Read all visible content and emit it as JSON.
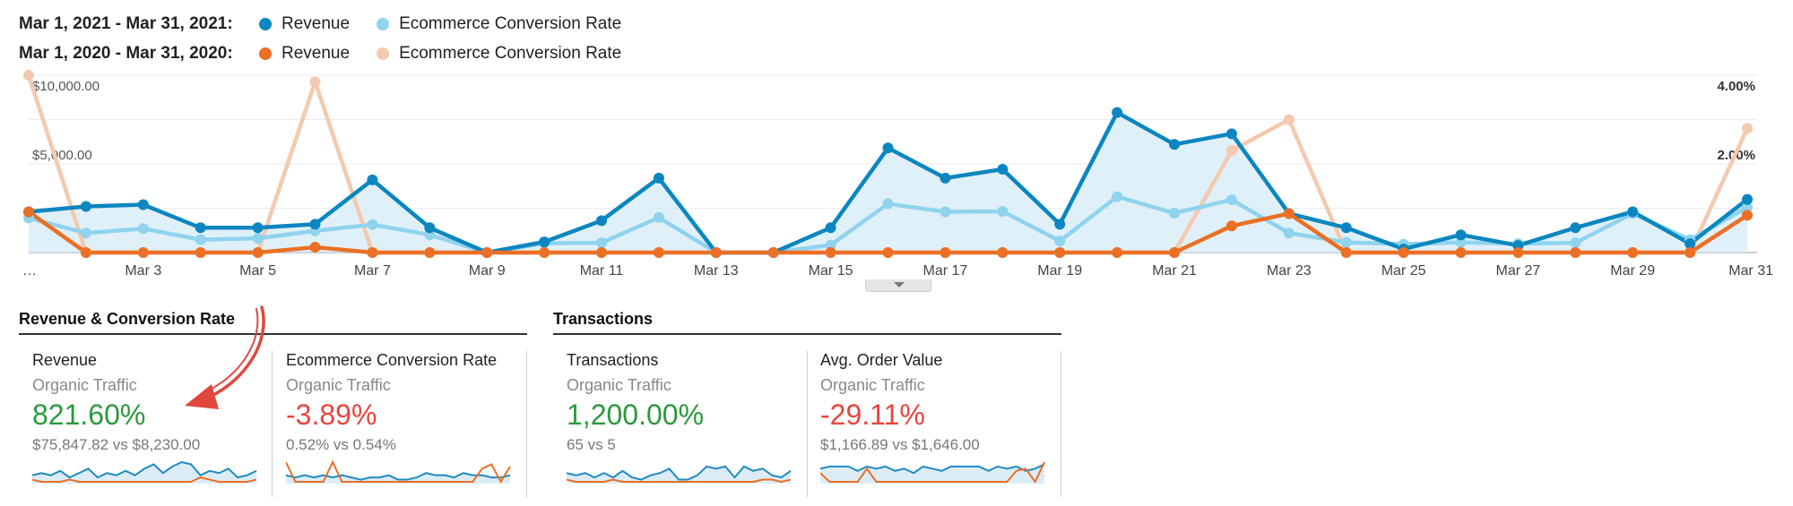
{
  "legend": {
    "rows": [
      {
        "period": "Mar 1, 2021 - Mar 31, 2021:",
        "items": [
          {
            "label": "Revenue",
            "color": "#0b86c0"
          },
          {
            "label": "Ecommerce Conversion Rate",
            "color": "#8fd3ee"
          }
        ]
      },
      {
        "period": "Mar 1, 2020 - Mar 31, 2020:",
        "items": [
          {
            "label": "Revenue",
            "color": "#eb6f24"
          },
          {
            "label": "Ecommerce Conversion Rate",
            "color": "#f4c9ad"
          }
        ]
      }
    ]
  },
  "chart_data": {
    "type": "line",
    "x": [
      "Mar 1",
      "Mar 2",
      "Mar 3",
      "Mar 4",
      "Mar 5",
      "Mar 6",
      "Mar 7",
      "Mar 8",
      "Mar 9",
      "Mar 10",
      "Mar 11",
      "Mar 12",
      "Mar 13",
      "Mar 14",
      "Mar 15",
      "Mar 16",
      "Mar 17",
      "Mar 18",
      "Mar 19",
      "Mar 20",
      "Mar 21",
      "Mar 22",
      "Mar 23",
      "Mar 24",
      "Mar 25",
      "Mar 26",
      "Mar 27",
      "Mar 28",
      "Mar 29",
      "Mar 30",
      "Mar 31"
    ],
    "x_tick_labels": [
      "…",
      "Mar 3",
      "Mar 5",
      "Mar 7",
      "Mar 9",
      "Mar 11",
      "Mar 13",
      "Mar 15",
      "Mar 17",
      "Mar 19",
      "Mar 21",
      "Mar 23",
      "Mar 25",
      "Mar 27",
      "Mar 29",
      "Mar 31"
    ],
    "y_left": {
      "ticks": [
        "$10,000.00",
        "$5,000.00"
      ],
      "range": [
        0,
        10000
      ]
    },
    "y_right": {
      "ticks": [
        "4.00%",
        "2.00%"
      ],
      "range": [
        0,
        4
      ]
    },
    "grid": true,
    "series": [
      {
        "name": "Revenue",
        "period": "Mar 1, 2021 - Mar 31, 2021",
        "axis": "left",
        "color": "#0b86c0",
        "area": true,
        "values": [
          2300,
          2600,
          2700,
          1400,
          1400,
          1600,
          4100,
          1400,
          0,
          600,
          1800,
          4200,
          0,
          0,
          1400,
          5900,
          4200,
          4700,
          1600,
          7900,
          6100,
          6700,
          2200,
          1400,
          200,
          1000,
          400,
          1400,
          2300,
          500,
          3000
        ]
      },
      {
        "name": "Ecommerce Conversion Rate",
        "period": "Mar 1, 2021 - Mar 31, 2021",
        "axis": "right",
        "color": "#8fd3ee",
        "values": [
          0.78,
          0.44,
          0.54,
          0.29,
          0.32,
          0.49,
          0.63,
          0.4,
          0.0,
          0.21,
          0.22,
          0.79,
          0.0,
          0.0,
          0.17,
          1.1,
          0.92,
          0.93,
          0.26,
          1.26,
          0.89,
          1.19,
          0.44,
          0.23,
          0.19,
          0.23,
          0.2,
          0.22,
          0.88,
          0.29,
          1.02
        ]
      },
      {
        "name": "Revenue",
        "period": "Mar 1, 2020 - Mar 31, 2020",
        "axis": "left",
        "color": "#eb6f24",
        "values": [
          2300,
          0,
          0,
          0,
          0,
          300,
          0,
          0,
          0,
          0,
          0,
          0,
          0,
          0,
          0,
          0,
          0,
          0,
          0,
          0,
          0,
          1500,
          2200,
          0,
          0,
          0,
          0,
          0,
          0,
          0,
          2100
        ]
      },
      {
        "name": "Ecommerce Conversion Rate",
        "period": "Mar 1, 2020 - Mar 31, 2020",
        "axis": "right",
        "color": "#f4c9ad",
        "values": [
          4.0,
          0,
          0,
          0,
          0,
          3.85,
          0,
          0,
          0,
          0,
          0,
          0,
          0,
          0,
          0,
          0,
          0,
          0,
          0,
          0,
          0,
          2.3,
          3.0,
          0,
          0,
          0,
          0,
          0,
          0,
          0,
          2.8
        ]
      }
    ]
  },
  "sections": [
    {
      "title": "Revenue & Conversion Rate"
    },
    {
      "title": "Transactions"
    }
  ],
  "cards": [
    {
      "title": "Revenue",
      "segment": "Organic Traffic",
      "change": "821.60%",
      "trend": "good",
      "compare": "$75,847.82 vs $8,230.00",
      "spark_a": [
        3,
        4,
        3,
        5,
        2,
        4,
        6,
        2,
        4,
        3,
        5,
        3,
        6,
        8,
        4,
        7,
        9,
        8,
        3,
        5,
        4,
        6,
        2,
        3,
        5
      ],
      "spark_b": [
        1,
        0,
        0,
        0,
        1,
        0,
        0,
        0,
        0,
        0,
        0,
        0,
        0,
        0,
        0,
        0,
        0,
        0,
        2,
        1,
        0,
        0,
        0,
        0,
        1
      ]
    },
    {
      "title": "Ecommerce Conversion Rate",
      "segment": "Organic Traffic",
      "change": "-3.89%",
      "trend": "bad",
      "compare": "0.52% vs 0.54%",
      "spark_a": [
        3,
        2,
        3,
        2,
        3,
        2,
        3,
        2,
        1,
        2,
        2,
        3,
        1,
        1,
        2,
        4,
        3,
        3,
        2,
        4,
        3,
        3,
        2,
        2,
        3
      ],
      "spark_b": [
        9,
        0,
        0,
        0,
        0,
        9,
        0,
        0,
        0,
        0,
        0,
        0,
        0,
        0,
        0,
        0,
        0,
        0,
        0,
        0,
        0,
        6,
        8,
        0,
        7
      ]
    },
    {
      "title": "Transactions",
      "segment": "Organic Traffic",
      "change": "1,200.00%",
      "trend": "good",
      "compare": "65 vs 5",
      "spark_a": [
        4,
        3,
        4,
        2,
        4,
        2,
        5,
        2,
        1,
        3,
        4,
        6,
        1,
        1,
        3,
        7,
        6,
        7,
        2,
        7,
        5,
        6,
        3,
        2,
        5
      ],
      "spark_b": [
        1,
        0,
        0,
        0,
        0,
        1,
        0,
        0,
        0,
        0,
        0,
        0,
        0,
        0,
        0,
        0,
        0,
        0,
        0,
        0,
        0,
        1,
        1,
        0,
        1
      ]
    },
    {
      "title": "Avg. Order Value",
      "segment": "Organic Traffic",
      "change": "-29.11%",
      "trend": "bad",
      "compare": "$1,166.89 vs $1,646.00",
      "spark_a": [
        6,
        7,
        7,
        7,
        5,
        7,
        6,
        7,
        5,
        6,
        4,
        7,
        6,
        5,
        7,
        7,
        7,
        7,
        5,
        7,
        6,
        7,
        5,
        6,
        8
      ],
      "spark_b": [
        4,
        0,
        0,
        0,
        0,
        6,
        0,
        0,
        0,
        0,
        0,
        0,
        0,
        0,
        0,
        0,
        0,
        0,
        0,
        0,
        0,
        5,
        6,
        0,
        9
      ]
    }
  ]
}
